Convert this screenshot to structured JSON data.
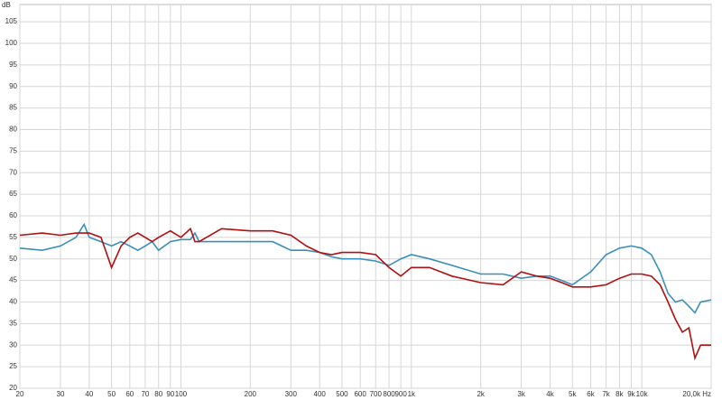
{
  "chart_data": {
    "type": "line",
    "y_label": "dB",
    "x": [
      20,
      25,
      30,
      35,
      38,
      40,
      45,
      50,
      55,
      60,
      65,
      70,
      75,
      80,
      90,
      100,
      110,
      115,
      120,
      150,
      200,
      250,
      300,
      350,
      400,
      450,
      500,
      600,
      700,
      800,
      900,
      1000,
      1200,
      1500,
      2000,
      2500,
      3000,
      3500,
      4000,
      4500,
      5000,
      6000,
      7000,
      8000,
      9000,
      10000,
      11000,
      12000,
      13000,
      14000,
      15000,
      16000,
      17000,
      18000,
      20000
    ],
    "series": [
      {
        "color": "#3a8fba",
        "values": [
          52.5,
          52,
          53,
          55,
          58,
          55,
          54,
          53,
          54,
          53,
          52,
          53,
          54,
          52,
          54,
          54.5,
          54.5,
          56,
          54,
          54,
          54,
          54,
          52,
          52,
          51.5,
          50.5,
          50,
          50,
          49.5,
          48.5,
          50,
          51,
          50,
          48.5,
          46.5,
          46.5,
          45.5,
          46,
          46,
          45,
          44,
          47,
          51,
          52.5,
          53,
          52.5,
          51,
          47,
          42,
          40,
          40.5,
          39,
          37.5,
          40,
          40.5
        ]
      },
      {
        "color": "#b01010",
        "values": [
          55.5,
          56,
          55.5,
          56,
          56,
          56,
          55,
          48,
          53,
          55,
          56,
          55,
          54,
          55,
          56.5,
          55,
          57,
          54,
          54,
          57,
          56.5,
          56.5,
          55.5,
          53,
          51.5,
          51,
          51.5,
          51.5,
          51,
          48,
          46,
          48,
          48,
          46,
          44.5,
          44,
          47,
          46,
          45.5,
          44.5,
          43.5,
          43.5,
          44,
          45.5,
          46.5,
          46.5,
          46,
          44,
          40,
          36,
          33,
          34,
          27,
          30,
          30
        ]
      }
    ],
    "xlim": [
      20,
      20000
    ],
    "ylim": [
      20,
      109
    ],
    "log_x": true,
    "grid": true,
    "xticks": [
      20,
      30,
      40,
      50,
      60,
      70,
      80,
      90,
      100,
      200,
      300,
      400,
      500,
      600,
      700,
      800,
      900,
      {
        "value": 1000,
        "label": "1k"
      },
      {
        "value": 2000,
        "label": "2k"
      },
      {
        "value": 3000,
        "label": "3k"
      },
      {
        "value": 4000,
        "label": "4k"
      },
      {
        "value": 5000,
        "label": "5k"
      },
      {
        "value": 6000,
        "label": "6k"
      },
      {
        "value": 7000,
        "label": "7k"
      },
      {
        "value": 8000,
        "label": "8k"
      },
      {
        "value": 9000,
        "label": "9k"
      },
      {
        "value": 10000,
        "label": "10k"
      },
      {
        "value": 20000,
        "label": "20,0k Hz"
      }
    ],
    "yticks": [
      20,
      25,
      30,
      35,
      40,
      45,
      50,
      55,
      60,
      65,
      70,
      75,
      80,
      85,
      90,
      95,
      100,
      105
    ]
  }
}
